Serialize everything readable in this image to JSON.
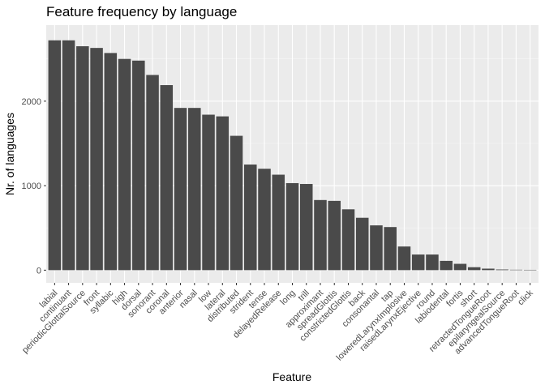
{
  "chart_data": {
    "type": "bar",
    "title": "Feature frequency by language",
    "xlabel": "Feature",
    "ylabel": "Nr. of languages",
    "ylim": [
      -150,
      2900
    ],
    "yticks": [
      0,
      1000,
      2000
    ],
    "grid": true,
    "legend": "none",
    "colors": {
      "bar": "#4a4a4a",
      "panel": "#ebebeb",
      "grid_major": "#ffffff",
      "grid_minor": "#f5f5f5",
      "tick_label": "#4d4d4d",
      "tick_mark": "#333333",
      "text": "#000000"
    },
    "categories": [
      "labial",
      "continuant",
      "periodicGlottalSource",
      "front",
      "syllabic",
      "high",
      "dorsal",
      "sonorant",
      "coronal",
      "anterior",
      "nasal",
      "low",
      "lateral",
      "distributed",
      "strident",
      "tense",
      "delayedRelease",
      "long",
      "trill",
      "approximant",
      "spreadGlottis",
      "constrictedGlottis",
      "back",
      "consonantal",
      "tap",
      "loweredLarynxImplosive",
      "raisedLarynxEjective",
      "round",
      "labiodental",
      "fortis",
      "short",
      "retractedTongueRoot",
      "epilaryngealSource",
      "advancedTongueRoot",
      "click"
    ],
    "values": [
      2720,
      2720,
      2650,
      2630,
      2570,
      2500,
      2480,
      2310,
      2190,
      1920,
      1920,
      1840,
      1820,
      1590,
      1250,
      1200,
      1130,
      1030,
      1020,
      830,
      820,
      720,
      620,
      530,
      510,
      280,
      185,
      185,
      110,
      75,
      35,
      18,
      8,
      5,
      4
    ]
  }
}
